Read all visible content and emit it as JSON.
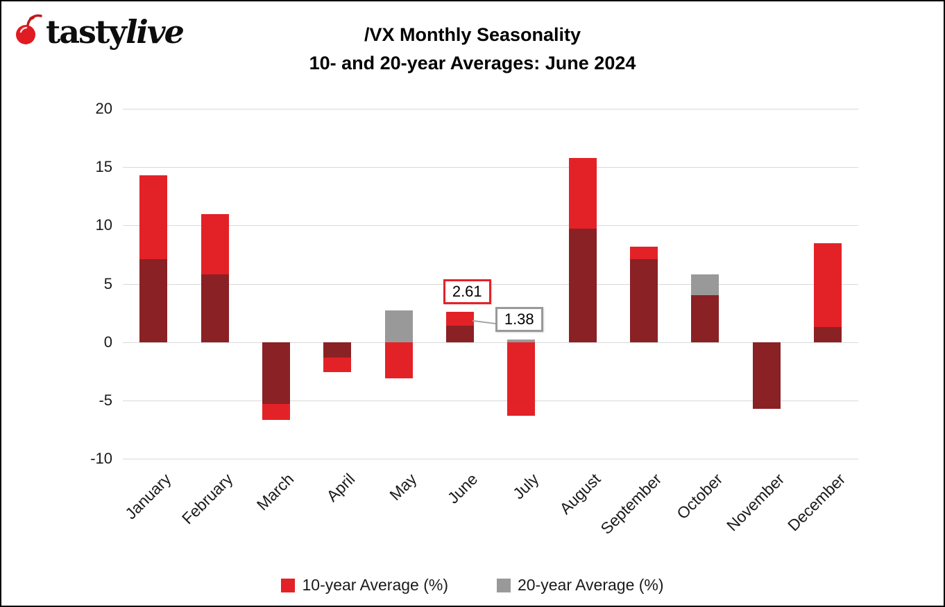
{
  "logo": {
    "tasty": "tasty",
    "live": "live"
  },
  "title": {
    "line1": "/VX Monthly Seasonality",
    "line2": "10- and 20-year Averages: June 2024"
  },
  "chart_data": {
    "type": "bar",
    "categories": [
      "January",
      "February",
      "March",
      "April",
      "May",
      "June",
      "July",
      "August",
      "September",
      "October",
      "November",
      "December"
    ],
    "series": [
      {
        "name": "10-year Average (%)",
        "color": "#e32227",
        "values": [
          14.3,
          11.0,
          -6.7,
          -2.6,
          -3.1,
          2.61,
          -6.3,
          15.8,
          8.2,
          4.0,
          -5.7,
          8.5
        ]
      },
      {
        "name": "20-year Average (%)",
        "color": "#999999",
        "values": [
          7.1,
          5.8,
          -5.3,
          -1.3,
          2.7,
          1.38,
          0.2,
          9.7,
          7.1,
          5.8,
          -5.7,
          1.3
        ]
      }
    ],
    "overlap_color": "#8a2125",
    "ylim": [
      -10,
      20
    ],
    "yticks": [
      20,
      15,
      10,
      5,
      0,
      -5,
      -10
    ],
    "grid": true,
    "legend_position": "bottom",
    "annotations": [
      {
        "text": "2.61",
        "value": 2.61,
        "month_index": 5,
        "placement": "above",
        "border_color": "#e32227"
      },
      {
        "text": "1.38",
        "value": 1.38,
        "month_index": 5,
        "placement": "right",
        "border_color": "#999999"
      }
    ]
  }
}
